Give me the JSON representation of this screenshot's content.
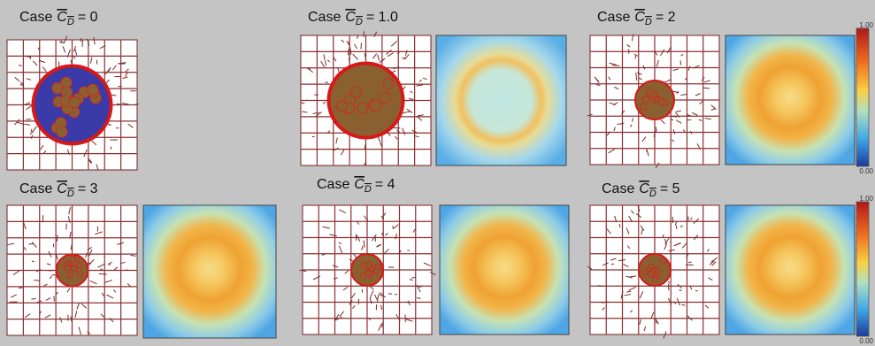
{
  "panels": [
    {
      "prefix": "Case",
      "symbol": "C",
      "subscript": "D",
      "suffix": "= 0"
    },
    {
      "prefix": "Case",
      "symbol": "C",
      "subscript": "D",
      "suffix": "= 1.0"
    },
    {
      "prefix": "Case",
      "symbol": "C",
      "subscript": "D",
      "suffix": "= 2"
    },
    {
      "prefix": "Case",
      "symbol": "C",
      "subscript": "D",
      "suffix": "= 3"
    },
    {
      "prefix": "Case",
      "symbol": "C",
      "subscript": "D",
      "suffix": "= 4"
    },
    {
      "prefix": "Case",
      "symbol": "C",
      "subscript": "D",
      "suffix": "= 5"
    }
  ],
  "colorbars": [
    {
      "top": "1.00",
      "bottom": "0.00"
    },
    {
      "top": "1.00",
      "bottom": "0.00"
    }
  ]
}
